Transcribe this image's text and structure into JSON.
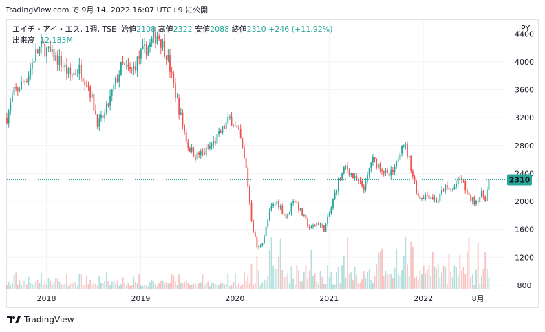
{
  "header": {
    "text": "TradingView.com で 9月 14, 2022 16:07 UTC+9 に公開"
  },
  "legend": {
    "symbol": "エイチ・アイ・エス, 1週, TSE",
    "open_label": "始値",
    "open": "2108",
    "high_label": "高値",
    "high": "2322",
    "low_label": "安値",
    "low": "2088",
    "close_label": "終値",
    "close": "2310",
    "change": "+246 (+11.92%)",
    "volume_label": "出来高",
    "volume": "12.183M"
  },
  "footer": {
    "brand": "TradingView",
    "logo_text": "17"
  },
  "colors": {
    "up": "#26a69a",
    "down": "#ef5350",
    "price_line": "#26a69a",
    "grid": "#f0f3fa"
  },
  "chart_data": {
    "type": "candlestick",
    "currency": "JPY",
    "y_ticks": [
      800,
      1200,
      1600,
      2000,
      2400,
      2800,
      3200,
      3600,
      4000,
      4400
    ],
    "ylim": [
      740,
      4600
    ],
    "x_ticks": [
      {
        "label": "2018",
        "t": 2018.0
      },
      {
        "label": "2019",
        "t": 2019.0
      },
      {
        "label": "2020",
        "t": 2020.0
      },
      {
        "label": "2021",
        "t": 2021.0
      },
      {
        "label": "2022",
        "t": 2022.0
      },
      {
        "label": "8月",
        "t": 2022.58
      }
    ],
    "xlim": [
      2017.58,
      2022.86
    ],
    "last_price": 2310,
    "price_path": [
      [
        2017.58,
        3200
      ],
      [
        2017.65,
        3550
      ],
      [
        2017.72,
        3650
      ],
      [
        2017.8,
        3800
      ],
      [
        2017.88,
        4100
      ],
      [
        2017.95,
        4220
      ],
      [
        2018.05,
        4100
      ],
      [
        2018.15,
        4000
      ],
      [
        2018.25,
        3800
      ],
      [
        2018.35,
        3900
      ],
      [
        2018.45,
        3650
      ],
      [
        2018.55,
        3100
      ],
      [
        2018.62,
        3250
      ],
      [
        2018.72,
        3650
      ],
      [
        2018.8,
        3950
      ],
      [
        2018.9,
        3850
      ],
      [
        2019.0,
        4100
      ],
      [
        2019.1,
        4250
      ],
      [
        2019.18,
        4400
      ],
      [
        2019.28,
        4100
      ],
      [
        2019.35,
        3650
      ],
      [
        2019.42,
        3250
      ],
      [
        2019.5,
        2800
      ],
      [
        2019.58,
        2650
      ],
      [
        2019.68,
        2700
      ],
      [
        2019.78,
        2850
      ],
      [
        2019.88,
        3050
      ],
      [
        2019.95,
        3200
      ],
      [
        2020.05,
        2950
      ],
      [
        2020.12,
        2450
      ],
      [
        2020.18,
        1700
      ],
      [
        2020.24,
        1300
      ],
      [
        2020.3,
        1450
      ],
      [
        2020.38,
        1900
      ],
      [
        2020.45,
        2000
      ],
      [
        2020.55,
        1750
      ],
      [
        2020.62,
        2050
      ],
      [
        2020.72,
        1800
      ],
      [
        2020.8,
        1600
      ],
      [
        2020.88,
        1700
      ],
      [
        2020.95,
        1600
      ],
      [
        2021.02,
        1900
      ],
      [
        2021.1,
        2300
      ],
      [
        2021.18,
        2500
      ],
      [
        2021.28,
        2300
      ],
      [
        2021.38,
        2200
      ],
      [
        2021.45,
        2600
      ],
      [
        2021.55,
        2500
      ],
      [
        2021.62,
        2350
      ],
      [
        2021.7,
        2450
      ],
      [
        2021.78,
        2900
      ],
      [
        2021.85,
        2600
      ],
      [
        2021.9,
        2300
      ],
      [
        2021.95,
        2050
      ],
      [
        2022.05,
        2100
      ],
      [
        2022.15,
        2000
      ],
      [
        2022.22,
        2200
      ],
      [
        2022.3,
        2150
      ],
      [
        2022.4,
        2350
      ],
      [
        2022.48,
        2050
      ],
      [
        2022.55,
        2000
      ],
      [
        2022.62,
        2100
      ],
      [
        2022.66,
        2050
      ],
      [
        2022.7,
        2310
      ]
    ]
  }
}
